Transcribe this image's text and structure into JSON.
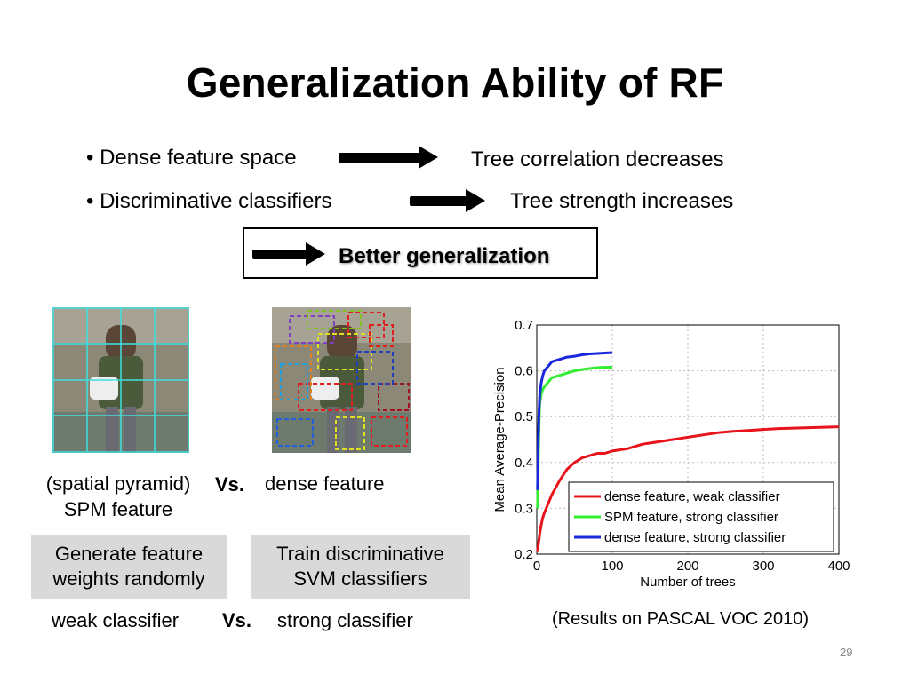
{
  "slide": {
    "title": "Generalization Ability of RF",
    "bullets": [
      {
        "text": "• Dense feature space",
        "result": "Tree correlation decreases"
      },
      {
        "text": "• Discriminative classifiers",
        "result": "Tree strength increases"
      }
    ],
    "conclusion": "Better generalization",
    "left_caption_line1": "(spatial pyramid)",
    "left_caption_line2": "SPM feature",
    "vs_label": "Vs.",
    "right_caption": "dense feature",
    "box_left_line1": "Generate feature",
    "box_left_line2": "weights randomly",
    "box_right_line1": "Train discriminative",
    "box_right_line2": "SVM classifiers",
    "weak_label": "weak classifier",
    "strong_label": "strong classifier",
    "results_note": "(Results on PASCAL VOC 2010)",
    "page_number": "29"
  },
  "chart_data": {
    "type": "line",
    "title": "",
    "xlabel": "Number of trees",
    "ylabel": "Mean Average-Precision",
    "xlim": [
      0,
      400
    ],
    "ylim": [
      0.2,
      0.7
    ],
    "xticks": [
      0,
      100,
      200,
      300,
      400
    ],
    "yticks": [
      0.2,
      0.3,
      0.4,
      0.5,
      0.6,
      0.7
    ],
    "grid": true,
    "legend_position": "bottom-right",
    "series": [
      {
        "name": "dense feature, weak classifier",
        "color": "#e8141b",
        "x": [
          1,
          2,
          4,
          6,
          8,
          10,
          15,
          20,
          25,
          30,
          40,
          50,
          60,
          70,
          80,
          90,
          100,
          120,
          140,
          160,
          180,
          200,
          220,
          240,
          260,
          280,
          300,
          320,
          340,
          360,
          380,
          400
        ],
        "y": [
          0.205,
          0.22,
          0.245,
          0.265,
          0.28,
          0.29,
          0.31,
          0.33,
          0.345,
          0.36,
          0.385,
          0.4,
          0.41,
          0.415,
          0.42,
          0.42,
          0.425,
          0.43,
          0.44,
          0.445,
          0.45,
          0.455,
          0.46,
          0.465,
          0.468,
          0.47,
          0.472,
          0.474,
          0.475,
          0.476,
          0.477,
          0.478
        ]
      },
      {
        "name": "SPM feature, strong classifier",
        "color": "#33ee33",
        "x": [
          1,
          2,
          3,
          4,
          6,
          8,
          10,
          15,
          20,
          30,
          40,
          50,
          60,
          70,
          80,
          90,
          100
        ],
        "y": [
          0.3,
          0.4,
          0.48,
          0.53,
          0.55,
          0.56,
          0.565,
          0.575,
          0.585,
          0.59,
          0.595,
          0.6,
          0.603,
          0.605,
          0.607,
          0.608,
          0.608
        ]
      },
      {
        "name": "dense feature, strong classifier",
        "color": "#1a28dd",
        "x": [
          1,
          2,
          3,
          4,
          6,
          8,
          10,
          15,
          20,
          30,
          40,
          50,
          60,
          70,
          80,
          90,
          100
        ],
        "y": [
          0.34,
          0.45,
          0.51,
          0.55,
          0.575,
          0.59,
          0.6,
          0.61,
          0.62,
          0.625,
          0.63,
          0.632,
          0.635,
          0.637,
          0.638,
          0.639,
          0.64
        ]
      }
    ]
  }
}
